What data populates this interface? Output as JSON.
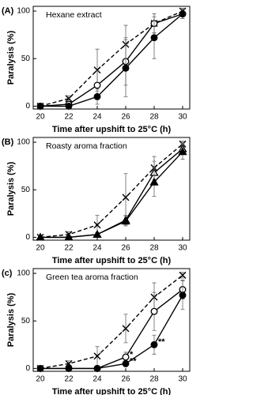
{
  "chart_data": [
    {
      "type": "line",
      "panel_label": "(A)",
      "title": "Hexane extract",
      "x_label": "Time after upshift to 25°C (h)",
      "y_label": "Paralysis (%)",
      "x": [
        20,
        22,
        24,
        26,
        28,
        30
      ],
      "xlim": [
        19.5,
        30.5
      ],
      "xticks": [
        20,
        22,
        24,
        26,
        28,
        30
      ],
      "ylim": [
        -3,
        105
      ],
      "yticks": [
        0,
        50,
        100
      ],
      "series": [
        {
          "color": "#000000",
          "dashed": true,
          "marker": "cross",
          "values": [
            0,
            8,
            38,
            65,
            87,
            100
          ],
          "errors": [
            0,
            3,
            22,
            20,
            10,
            3
          ]
        },
        {
          "color": "#000000",
          "dashed": false,
          "marker": "open-circle",
          "values": [
            0,
            2,
            22,
            47,
            87,
            97
          ],
          "errors": [
            0,
            2,
            15,
            25,
            10,
            5
          ]
        },
        {
          "color": "#000000",
          "dashed": false,
          "marker": "filled-circle",
          "values": [
            0,
            0,
            10,
            40,
            72,
            97
          ],
          "errors": [
            0,
            0,
            8,
            30,
            22,
            5
          ]
        }
      ]
    },
    {
      "type": "line",
      "panel_label": "(B)",
      "title": "Roasty aroma fraction",
      "x_label": "Time after upshift to 25°C (h)",
      "y_label": "Paralysis (%)",
      "x": [
        20,
        22,
        24,
        26,
        28,
        30
      ],
      "xlim": [
        19.5,
        30.5
      ],
      "xticks": [
        20,
        22,
        24,
        26,
        28,
        30
      ],
      "ylim": [
        -3,
        105
      ],
      "yticks": [
        0,
        50,
        100
      ],
      "series": [
        {
          "color": "#000000",
          "dashed": true,
          "marker": "cross",
          "values": [
            0,
            3,
            13,
            42,
            73,
            98
          ],
          "errors": [
            0,
            3,
            10,
            25,
            12,
            3
          ]
        },
        {
          "color": "#000000",
          "dashed": false,
          "marker": "open-triangle",
          "values": [
            0,
            0,
            3,
            18,
            68,
            93
          ],
          "errors": [
            0,
            0,
            2,
            5,
            12,
            6
          ]
        },
        {
          "color": "#000000",
          "dashed": false,
          "marker": "filled-triangle",
          "values": [
            0,
            0,
            3,
            17,
            58,
            90
          ],
          "errors": [
            0,
            0,
            2,
            5,
            15,
            8
          ]
        }
      ]
    },
    {
      "type": "line",
      "panel_label": "(c)",
      "title": "Green tea aroma fraction",
      "x_label": "Time after upshift to 25°C (h)",
      "y_label": "Paralysis (%)",
      "x": [
        20,
        22,
        24,
        26,
        28,
        30
      ],
      "xlim": [
        19.5,
        30.5
      ],
      "xticks": [
        20,
        22,
        24,
        26,
        28,
        30
      ],
      "ylim": [
        -3,
        105
      ],
      "yticks": [
        0,
        50,
        100
      ],
      "series": [
        {
          "color": "#000000",
          "dashed": true,
          "marker": "cross",
          "values": [
            0,
            5,
            13,
            42,
            75,
            98
          ],
          "errors": [
            0,
            3,
            10,
            15,
            15,
            3
          ]
        },
        {
          "color": "#000000",
          "dashed": false,
          "marker": "open-circle",
          "values": [
            0,
            0,
            0,
            12,
            60,
            83
          ],
          "errors": [
            0,
            0,
            0,
            5,
            20,
            10
          ],
          "annotations": [
            null,
            null,
            null,
            "*",
            null,
            null
          ]
        },
        {
          "color": "#000000",
          "dashed": false,
          "marker": "filled-circle",
          "values": [
            0,
            0,
            0,
            5,
            25,
            77
          ],
          "errors": [
            0,
            0,
            0,
            3,
            10,
            15
          ],
          "annotations": [
            null,
            null,
            null,
            "**",
            "**",
            null
          ]
        }
      ]
    }
  ]
}
